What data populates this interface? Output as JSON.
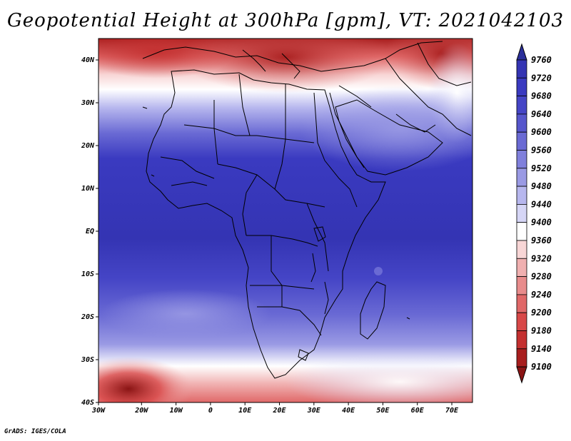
{
  "title": "Geopotential Height at 300hPa [gpm], VT: 2021042103",
  "credit": "GrADS: IGES/COLA",
  "x_axis": {
    "ticks": [
      "30W",
      "20W",
      "10W",
      "0",
      "10E",
      "20E",
      "30E",
      "40E",
      "50E",
      "60E",
      "70E"
    ]
  },
  "y_axis": {
    "ticks": [
      "40N",
      "30N",
      "20N",
      "10N",
      "EQ",
      "10S",
      "20S",
      "30S",
      "40S"
    ]
  },
  "colorbar": {
    "levels": [
      "9760",
      "9720",
      "9680",
      "9640",
      "9600",
      "9560",
      "9520",
      "9480",
      "9440",
      "9400",
      "9360",
      "9320",
      "9280",
      "9240",
      "9200",
      "9180",
      "9140",
      "9100"
    ],
    "colors": [
      "#2b2f9a",
      "#3434b3",
      "#3a3ac0",
      "#4545c6",
      "#5656cc",
      "#6a6ad4",
      "#8080dc",
      "#9a9ae4",
      "#b7b7ee",
      "#d6d6f6",
      "#ffffff",
      "#f8d6d6",
      "#f0b0b0",
      "#e88c8c",
      "#e06868",
      "#d84848",
      "#c43030",
      "#a81e1e",
      "#8a1414"
    ]
  }
}
